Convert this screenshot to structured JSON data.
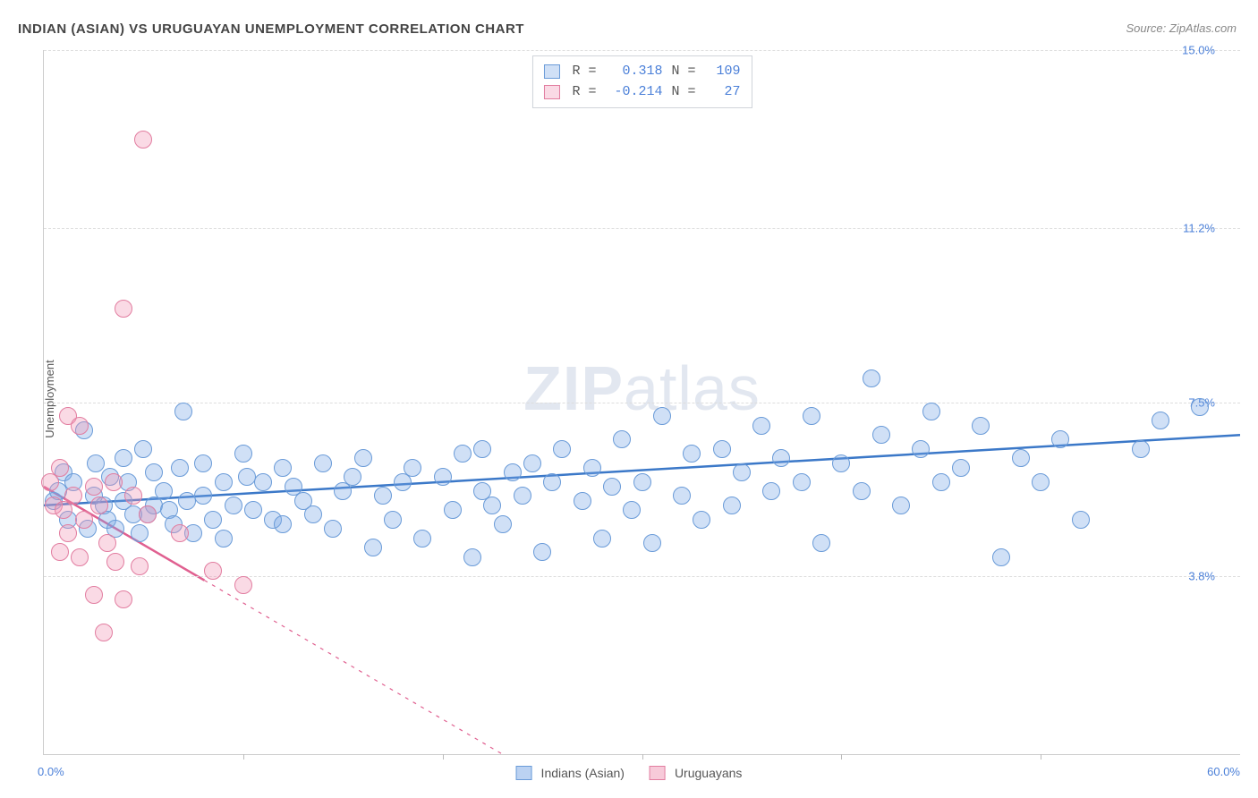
{
  "title": "INDIAN (ASIAN) VS URUGUAYAN UNEMPLOYMENT CORRELATION CHART",
  "source": "Source: ZipAtlas.com",
  "ylabel": "Unemployment",
  "watermark_a": "ZIP",
  "watermark_b": "atlas",
  "type": "scatter",
  "background_color": "#ffffff",
  "grid_color": "#dddddd",
  "axis_color": "#cccccc",
  "tick_label_color": "#4a7fd8",
  "title_color": "#444444",
  "title_fontsize": 15,
  "label_fontsize": 13,
  "xlim": [
    0,
    60
  ],
  "ylim": [
    0,
    15
  ],
  "x_tick_step": 10,
  "x_start_label": "0.0%",
  "x_end_label": "60.0%",
  "y_ticks": [
    {
      "v": 3.8,
      "label": "3.8%"
    },
    {
      "v": 7.5,
      "label": "7.5%"
    },
    {
      "v": 11.2,
      "label": "11.2%"
    },
    {
      "v": 15.0,
      "label": "15.0%"
    }
  ],
  "series": [
    {
      "name": "Indians (Asian)",
      "color_fill": "rgba(120,165,230,0.35)",
      "color_stroke": "#6a9bd8",
      "line_color": "#3b78c8",
      "line_width": 2.5,
      "line_dash": "none",
      "marker_radius": 10,
      "R": "0.318",
      "N": "109",
      "reg": {
        "x1": 0,
        "y1": 5.3,
        "x2": 60,
        "y2": 6.8
      },
      "points": [
        [
          0.5,
          5.4
        ],
        [
          0.7,
          5.6
        ],
        [
          1.0,
          6.0
        ],
        [
          1.2,
          5.0
        ],
        [
          1.5,
          5.8
        ],
        [
          2.0,
          6.9
        ],
        [
          2.2,
          4.8
        ],
        [
          2.5,
          5.5
        ],
        [
          2.6,
          6.2
        ],
        [
          3.0,
          5.3
        ],
        [
          3.2,
          5.0
        ],
        [
          3.3,
          5.9
        ],
        [
          3.6,
          4.8
        ],
        [
          4.0,
          6.3
        ],
        [
          4.0,
          5.4
        ],
        [
          4.2,
          5.8
        ],
        [
          4.5,
          5.1
        ],
        [
          4.8,
          4.7
        ],
        [
          5.0,
          6.5
        ],
        [
          5.2,
          5.1
        ],
        [
          5.5,
          5.3
        ],
        [
          5.5,
          6.0
        ],
        [
          6.0,
          5.6
        ],
        [
          6.3,
          5.2
        ],
        [
          6.5,
          4.9
        ],
        [
          6.8,
          6.1
        ],
        [
          7.0,
          7.3
        ],
        [
          7.2,
          5.4
        ],
        [
          7.5,
          4.7
        ],
        [
          8.0,
          5.5
        ],
        [
          8.0,
          6.2
        ],
        [
          8.5,
          5.0
        ],
        [
          9.0,
          5.8
        ],
        [
          9.0,
          4.6
        ],
        [
          9.5,
          5.3
        ],
        [
          10.0,
          6.4
        ],
        [
          10.2,
          5.9
        ],
        [
          10.5,
          5.2
        ],
        [
          11.0,
          5.8
        ],
        [
          11.5,
          5.0
        ],
        [
          12.0,
          4.9
        ],
        [
          12.0,
          6.1
        ],
        [
          12.5,
          5.7
        ],
        [
          13.0,
          5.4
        ],
        [
          13.5,
          5.1
        ],
        [
          14.0,
          6.2
        ],
        [
          14.5,
          4.8
        ],
        [
          15.0,
          5.6
        ],
        [
          15.5,
          5.9
        ],
        [
          16.0,
          6.3
        ],
        [
          16.5,
          4.4
        ],
        [
          17.0,
          5.5
        ],
        [
          17.5,
          5.0
        ],
        [
          18.0,
          5.8
        ],
        [
          18.5,
          6.1
        ],
        [
          19.0,
          4.6
        ],
        [
          20.0,
          5.9
        ],
        [
          20.5,
          5.2
        ],
        [
          21.0,
          6.4
        ],
        [
          21.5,
          4.2
        ],
        [
          22.0,
          5.6
        ],
        [
          22.0,
          6.5
        ],
        [
          22.5,
          5.3
        ],
        [
          23.0,
          4.9
        ],
        [
          23.5,
          6.0
        ],
        [
          24.0,
          5.5
        ],
        [
          24.5,
          6.2
        ],
        [
          25.0,
          4.3
        ],
        [
          25.5,
          5.8
        ],
        [
          26.0,
          6.5
        ],
        [
          27.0,
          5.4
        ],
        [
          27.5,
          6.1
        ],
        [
          28.0,
          4.6
        ],
        [
          28.5,
          5.7
        ],
        [
          29.0,
          6.7
        ],
        [
          29.5,
          5.2
        ],
        [
          30.0,
          5.8
        ],
        [
          30.5,
          4.5
        ],
        [
          31.0,
          7.2
        ],
        [
          32.0,
          5.5
        ],
        [
          32.5,
          6.4
        ],
        [
          33.0,
          5.0
        ],
        [
          34.0,
          6.5
        ],
        [
          34.5,
          5.3
        ],
        [
          35.0,
          6.0
        ],
        [
          36.0,
          7.0
        ],
        [
          36.5,
          5.6
        ],
        [
          37.0,
          6.3
        ],
        [
          38.0,
          5.8
        ],
        [
          38.5,
          7.2
        ],
        [
          39.0,
          4.5
        ],
        [
          40.0,
          6.2
        ],
        [
          41.0,
          5.6
        ],
        [
          41.5,
          8.0
        ],
        [
          42.0,
          6.8
        ],
        [
          43.0,
          5.3
        ],
        [
          44.0,
          6.5
        ],
        [
          44.5,
          7.3
        ],
        [
          45.0,
          5.8
        ],
        [
          46.0,
          6.1
        ],
        [
          47.0,
          7.0
        ],
        [
          48.0,
          4.2
        ],
        [
          49.0,
          6.3
        ],
        [
          50.0,
          5.8
        ],
        [
          51.0,
          6.7
        ],
        [
          52.0,
          5.0
        ],
        [
          55.0,
          6.5
        ],
        [
          56.0,
          7.1
        ],
        [
          58.0,
          7.4
        ]
      ]
    },
    {
      "name": "Uruguayans",
      "color_fill": "rgba(240,150,180,0.35)",
      "color_stroke": "#e27da0",
      "line_color": "#e06090",
      "line_width": 2.5,
      "line_dash": "4 6",
      "marker_radius": 10,
      "R": "-0.214",
      "N": "27",
      "reg": {
        "x1": 0,
        "y1": 5.7,
        "x2": 23,
        "y2": 0.0
      },
      "points": [
        [
          0.3,
          5.8
        ],
        [
          0.5,
          5.3
        ],
        [
          0.8,
          6.1
        ],
        [
          0.8,
          4.3
        ],
        [
          1.0,
          5.2
        ],
        [
          1.2,
          7.2
        ],
        [
          1.2,
          4.7
        ],
        [
          1.5,
          5.5
        ],
        [
          1.8,
          7.0
        ],
        [
          1.8,
          4.2
        ],
        [
          2.0,
          5.0
        ],
        [
          2.5,
          5.7
        ],
        [
          2.5,
          3.4
        ],
        [
          2.8,
          5.3
        ],
        [
          3.0,
          2.6
        ],
        [
          3.2,
          4.5
        ],
        [
          3.5,
          5.8
        ],
        [
          3.6,
          4.1
        ],
        [
          4.0,
          9.5
        ],
        [
          4.0,
          3.3
        ],
        [
          4.5,
          5.5
        ],
        [
          4.8,
          4.0
        ],
        [
          5.0,
          13.1
        ],
        [
          5.2,
          5.1
        ],
        [
          6.8,
          4.7
        ],
        [
          8.5,
          3.9
        ],
        [
          10.0,
          3.6
        ]
      ]
    }
  ],
  "legend": [
    {
      "label": "Indians (Asian)",
      "fill": "rgba(120,165,230,0.5)",
      "stroke": "#6a9bd8"
    },
    {
      "label": "Uruguayans",
      "fill": "rgba(240,150,180,0.5)",
      "stroke": "#e27da0"
    }
  ]
}
